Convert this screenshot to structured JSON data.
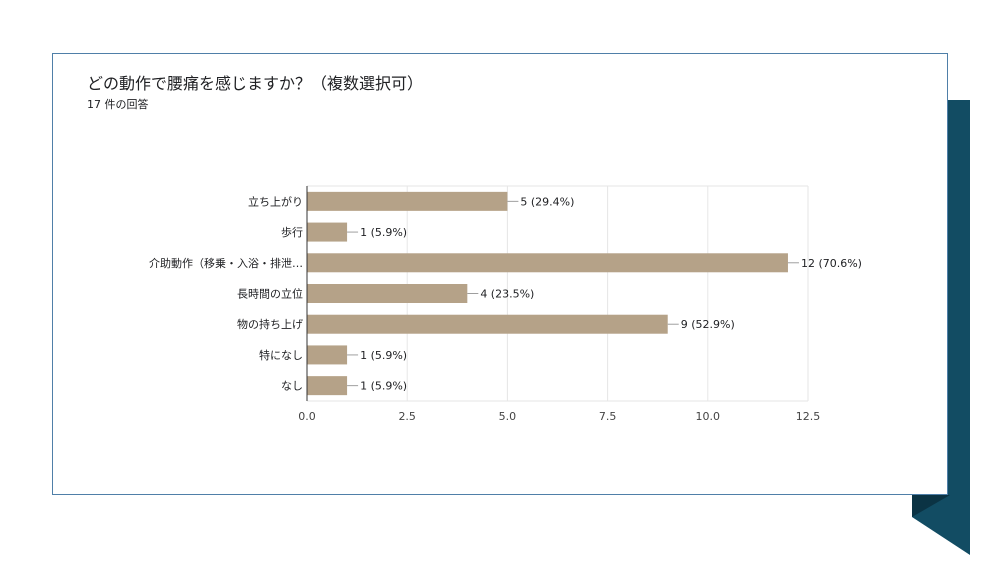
{
  "chart_data": {
    "type": "bar",
    "orientation": "horizontal",
    "title": "どの動作で腰痛を感じますか？（複数選択可）",
    "subtitle": "17 件の回答",
    "categories": [
      "立ち上がり",
      "歩行",
      "介助動作（移乗・入浴・排泄…",
      "長時間の立位",
      "物の持ち上げ",
      "特になし",
      "なし"
    ],
    "values": [
      5,
      1,
      12,
      4,
      9,
      1,
      1
    ],
    "data_labels": [
      "5 (29.4%)",
      "1 (5.9%)",
      "12 (70.6%)",
      "4 (23.5%)",
      "9 (52.9%)",
      "1 (5.9%)",
      "1 (5.9%)"
    ],
    "xlim": [
      0,
      12.5
    ],
    "xticks": [
      "0.0",
      "2.5",
      "5.0",
      "7.5",
      "10.0",
      "12.5"
    ],
    "xtick_values": [
      0,
      2.5,
      5,
      7.5,
      10,
      12.5
    ],
    "grid": true,
    "legend": "none",
    "bar_color": "#b5a288"
  },
  "colors": {
    "card_border": "#4f7fa8",
    "accent_dark": "#124c63",
    "accent_shadow": "#0b3344"
  }
}
